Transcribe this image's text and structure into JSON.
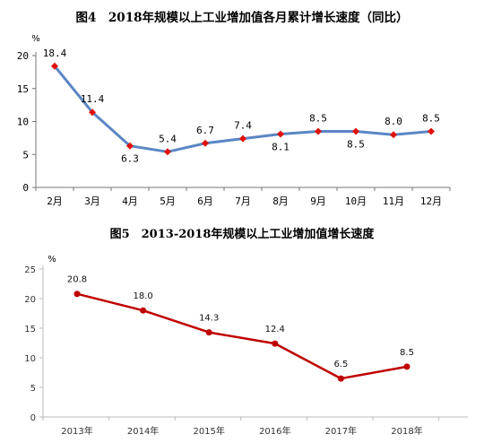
{
  "chart_data": [
    {
      "type": "line",
      "title": "图4　2018年规模以上工业增加值各月累计增长速度（同比）",
      "ylabel": "%",
      "categories": [
        "2月",
        "3月",
        "4月",
        "5月",
        "6月",
        "7月",
        "8月",
        "9月",
        "10月",
        "11月",
        "12月"
      ],
      "values": [
        18.4,
        11.4,
        6.3,
        5.4,
        6.7,
        7.4,
        8.1,
        8.5,
        8.5,
        8.0,
        8.5
      ],
      "data_labels": [
        "18.4",
        "11.4",
        "6.3",
        "5.4",
        "6.7",
        "7.4",
        "8.1",
        "8.5",
        "8.5",
        "8.0",
        "8.5"
      ],
      "label_position": [
        "above",
        "above",
        "below",
        "above",
        "above",
        "above",
        "below",
        "above",
        "below",
        "above",
        "above"
      ],
      "ylim": [
        0,
        20
      ],
      "yticks": [
        "0",
        "5",
        "10",
        "15",
        "20"
      ],
      "grid": false,
      "colors": {
        "line": "#5b86c4",
        "marker": "#e0110d"
      }
    },
    {
      "type": "line",
      "title": "图5　2013-2018年规模以上工业增加值增长速度",
      "ylabel": "%",
      "categories": [
        "2013年",
        "2014年",
        "2015年",
        "2016年",
        "2017年",
        "2018年"
      ],
      "values": [
        20.8,
        18.0,
        14.3,
        12.4,
        6.5,
        8.5
      ],
      "data_labels": [
        "20.8",
        "18.0",
        "14.3",
        "12.4",
        "6.5",
        "8.5"
      ],
      "label_position": [
        "above",
        "above",
        "above",
        "above",
        "above",
        "above"
      ],
      "ylim": [
        0,
        25
      ],
      "yticks": [
        "0",
        "5",
        "10",
        "15",
        "20",
        "25"
      ],
      "grid": false,
      "colors": {
        "line": "#c00000",
        "marker": "#c00000"
      }
    }
  ]
}
